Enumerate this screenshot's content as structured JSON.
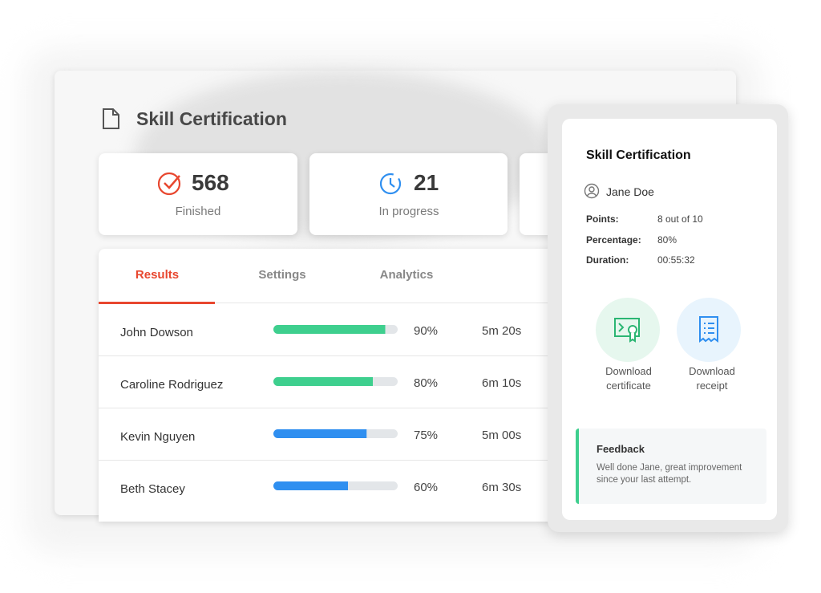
{
  "header": {
    "title": "Skill Certification"
  },
  "stats": [
    {
      "value": 568,
      "label": "Finished"
    },
    {
      "value": 21,
      "label": "In progress"
    }
  ],
  "tabs": [
    "Results",
    "Settings",
    "Analytics"
  ],
  "rows": [
    {
      "name": "John Dowson",
      "score": {
        "value": 90,
        "label": "90%"
      },
      "time": "5m 20s",
      "color": "#3ecf8e"
    },
    {
      "name": "Caroline Rodriguez",
      "score": {
        "value": 80,
        "label": "80%"
      },
      "time": "6m 10s",
      "color": "#3ecf8e"
    },
    {
      "name": "Kevin Nguyen",
      "score": {
        "value": 75,
        "label": "75%"
      },
      "time": "5m 00s",
      "color": "#2f8ff0"
    },
    {
      "name": "Beth Stacey",
      "score": {
        "value": 60,
        "label": "60%"
      },
      "time": "6m 30s",
      "color": "#2f8ff0"
    }
  ],
  "panel": {
    "title": "Skill Certification",
    "user": "Jane Doe",
    "details": [
      {
        "label": "Points:",
        "value": "8 out of 10"
      },
      {
        "label": "Percentage:",
        "value": "80%"
      },
      {
        "label": "Duration:",
        "value": "00:55:32"
      }
    ],
    "actions": [
      {
        "label": "Download certificate"
      },
      {
        "label": "Download receipt"
      }
    ],
    "feedback": {
      "title": "Feedback",
      "text": "Well done Jane, great improvement since your last attempt."
    }
  }
}
